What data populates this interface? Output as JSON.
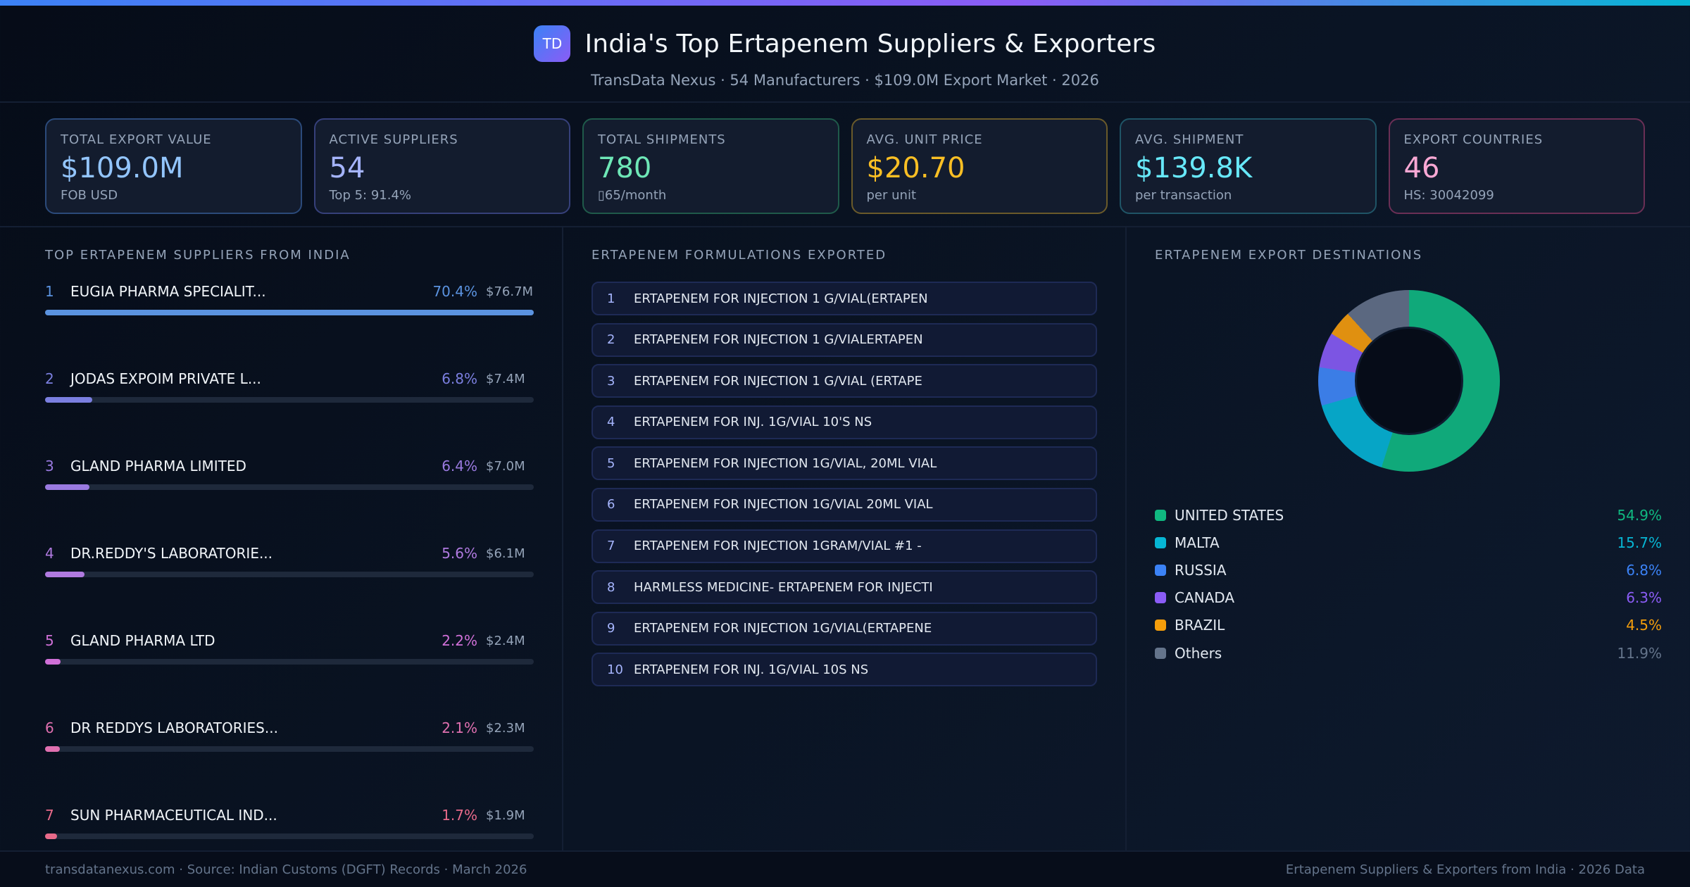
{
  "header": {
    "logo": "TD",
    "title": "India's Top Ertapenem Suppliers & Exporters",
    "subtitle": "TransData Nexus · 54 Manufacturers · $109.0M Export Market · 2026"
  },
  "kpis": [
    {
      "label": "TOTAL EXPORT VALUE",
      "value": "$109.0M",
      "sub": "FOB USD",
      "color": "#93c5fd",
      "border": "#2b4a7a"
    },
    {
      "label": "ACTIVE SUPPLIERS",
      "value": "54",
      "sub": "Top 5: 91.4%",
      "color": "#a5b4fc",
      "border": "#36407a"
    },
    {
      "label": "TOTAL SHIPMENTS",
      "value": "780",
      "sub": "▯65/month",
      "color": "#6ee7b7",
      "border": "#1f5a4a"
    },
    {
      "label": "AVG. UNIT PRICE",
      "value": "$20.70",
      "sub": "per unit",
      "color": "#fbbf24",
      "border": "#6a5a2a"
    },
    {
      "label": "AVG. SHIPMENT",
      "value": "$139.8K",
      "sub": "per transaction",
      "color": "#67e8f9",
      "border": "#1f5466"
    },
    {
      "label": "EXPORT COUNTRIES",
      "value": "46",
      "sub": "HS: 30042099",
      "color": "#f9a8d4",
      "border": "#6a2f55"
    }
  ],
  "suppliers": {
    "title": "TOP ERTAPENEM SUPPLIERS FROM INDIA",
    "items": [
      {
        "rank": "1",
        "name": "EUGIA PHARMA SPECIALIT...",
        "pct": "70.4%",
        "value": "$76.7M",
        "bar": 100,
        "color": "#5b93e0"
      },
      {
        "rank": "2",
        "name": "JODAS EXPOIM PRIVATE L...",
        "pct": "6.8%",
        "value": "$7.4M",
        "bar": 9.7,
        "color": "#7b7fe0"
      },
      {
        "rank": "3",
        "name": "GLAND PHARMA LIMITED",
        "pct": "6.4%",
        "value": "$7.0M",
        "bar": 9.1,
        "color": "#9a7ae0"
      },
      {
        "rank": "4",
        "name": "DR.REDDY'S LABORATORIE...",
        "pct": "5.6%",
        "value": "$6.1M",
        "bar": 8.0,
        "color": "#b07ae0"
      },
      {
        "rank": "5",
        "name": "GLAND PHARMA LTD",
        "pct": "2.2%",
        "value": "$2.4M",
        "bar": 3.1,
        "color": "#d070d8"
      },
      {
        "rank": "6",
        "name": "DR REDDYS LABORATORIES...",
        "pct": "2.1%",
        "value": "$2.3M",
        "bar": 3.0,
        "color": "#e070b0"
      },
      {
        "rank": "7",
        "name": "SUN PHARMACEUTICAL IND...",
        "pct": "1.7%",
        "value": "$1.9M",
        "bar": 2.4,
        "color": "#e86a8a"
      }
    ]
  },
  "formulations": {
    "title": "ERTAPENEM FORMULATIONS EXPORTED",
    "items": [
      {
        "num": "1",
        "text": "ERTAPENEM FOR INJECTION 1 G/VIAL(ERTAPEN"
      },
      {
        "num": "2",
        "text": "ERTAPENEM FOR INJECTION 1 G/VIALERTAPEN"
      },
      {
        "num": "3",
        "text": "ERTAPENEM FOR INJECTION 1 G/VIAL (ERTAPE"
      },
      {
        "num": "4",
        "text": "ERTAPENEM FOR INJ. 1G/VIAL 10'S NS"
      },
      {
        "num": "5",
        "text": "ERTAPENEM FOR INJECTION 1G/VIAL, 20ML VIAL"
      },
      {
        "num": "6",
        "text": "ERTAPENEM FOR INJECTION 1G/VIAL 20ML VIAL"
      },
      {
        "num": "7",
        "text": "ERTAPENEM FOR INJECTION 1GRAM/VIAL #1 -"
      },
      {
        "num": "8",
        "text": "HARMLESS MEDICINE- ERTAPENEM FOR INJECTI"
      },
      {
        "num": "9",
        "text": "ERTAPENEM FOR INJECTION 1G/VIAL(ERTAPENE"
      },
      {
        "num": "10",
        "text": "ERTAPENEM FOR INJ. 1G/VIAL 10S NS"
      }
    ]
  },
  "destinations": {
    "title": "ERTAPENEM EXPORT DESTINATIONS",
    "items": [
      {
        "name": "UNITED STATES",
        "pct": "54.9%",
        "color": "#10b981"
      },
      {
        "name": "MALTA",
        "pct": "15.7%",
        "color": "#06b6d4"
      },
      {
        "name": "RUSSIA",
        "pct": "6.8%",
        "color": "#3b82f6"
      },
      {
        "name": "CANADA",
        "pct": "6.3%",
        "color": "#8b5cf6"
      },
      {
        "name": "BRAZIL",
        "pct": "4.5%",
        "color": "#f59e0b"
      },
      {
        "name": "Others",
        "pct": "11.9%",
        "color": "#64748b"
      }
    ]
  },
  "chart_data": {
    "type": "pie",
    "title": "ERTAPENEM EXPORT DESTINATIONS",
    "categories": [
      "UNITED STATES",
      "MALTA",
      "RUSSIA",
      "CANADA",
      "BRAZIL",
      "Others"
    ],
    "values": [
      54.9,
      15.7,
      6.8,
      6.3,
      4.5,
      11.9
    ],
    "donut": true,
    "legend_position": "below"
  },
  "footer": {
    "left": "transdatanexus.com · Source: Indian Customs (DGFT) Records · March 2026",
    "right": "Ertapenem Suppliers & Exporters from India · 2026 Data"
  }
}
